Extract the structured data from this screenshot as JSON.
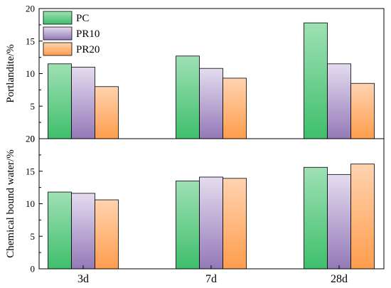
{
  "chart_data": [
    {
      "type": "bar",
      "categories": [
        "3d",
        "7d",
        "28d"
      ],
      "series": [
        {
          "name": "PC",
          "values": [
            11.5,
            12.7,
            17.8
          ]
        },
        {
          "name": "PR10",
          "values": [
            11.0,
            10.8,
            11.5
          ]
        },
        {
          "name": "PR20",
          "values": [
            8.0,
            9.3,
            8.5
          ]
        }
      ],
      "ylabel": "Portlandite/%",
      "ylim": [
        0,
        20
      ],
      "yticks": [
        "0",
        "5",
        "10",
        "15",
        "20"
      ],
      "legend": "top-left",
      "grid": false
    },
    {
      "type": "bar",
      "categories": [
        "3d",
        "7d",
        "28d"
      ],
      "series": [
        {
          "name": "PC",
          "values": [
            11.8,
            13.5,
            15.6
          ]
        },
        {
          "name": "PR10",
          "values": [
            11.6,
            14.1,
            14.5
          ]
        },
        {
          "name": "PR20",
          "values": [
            10.6,
            13.9,
            16.1
          ]
        }
      ],
      "ylabel": "Chemical bound water/%",
      "ylim": [
        0,
        20
      ],
      "yticks": [
        "0",
        "5",
        "10",
        "15",
        "20"
      ],
      "grid": false
    }
  ],
  "series_colors": [
    {
      "top": "#9fe0b4",
      "bottom": "#3fbf6c"
    },
    {
      "top": "#e4dcef",
      "bottom": "#9479b8"
    },
    {
      "top": "#ffd3b0",
      "bottom": "#ff9d4d"
    }
  ]
}
